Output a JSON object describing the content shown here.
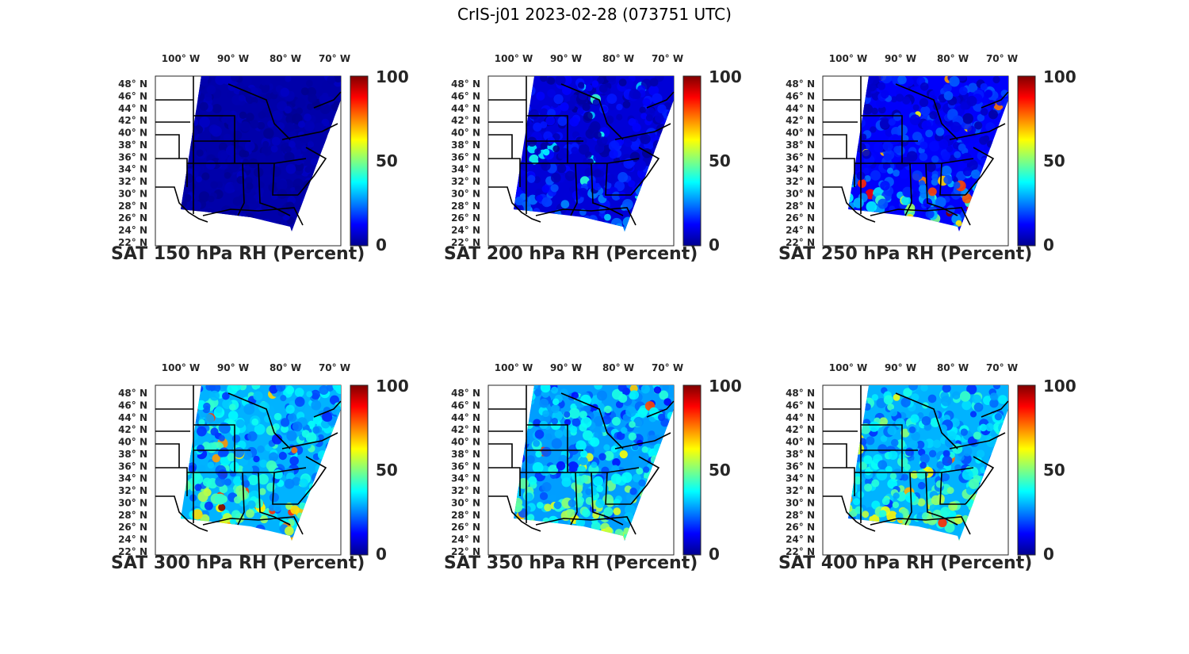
{
  "title": "CrIS-j01 2023-02-28 (073751 UTC)",
  "colormap": [
    "#00008f",
    "#0000ff",
    "#0080ff",
    "#00ffff",
    "#80ff80",
    "#ffff00",
    "#ff8000",
    "#ff0000",
    "#800000"
  ],
  "panels": [
    {
      "title": "SAT 150 hPa RH (Percent)",
      "mean": 3,
      "spread": 3,
      "south_boost": 0
    },
    {
      "title": "SAT 200 hPa RH (Percent)",
      "mean": 8,
      "spread": 8,
      "south_boost": 18
    },
    {
      "title": "SAT 250 hPa RH (Percent)",
      "mean": 12,
      "spread": 10,
      "south_boost": 38
    },
    {
      "title": "SAT 300 hPa RH (Percent)",
      "mean": 30,
      "spread": 15,
      "south_boost": 30
    },
    {
      "title": "SAT 350 hPa RH (Percent)",
      "mean": 28,
      "spread": 15,
      "south_boost": 28
    },
    {
      "title": "SAT 400 hPa RH (Percent)",
      "mean": 30,
      "spread": 14,
      "south_boost": 22
    }
  ],
  "lon_ticks": [
    "100° W",
    "90° W",
    "80° W",
    "70° W"
  ],
  "lat_ticks": [
    "48° N",
    "46° N",
    "44° N",
    "42° N",
    "40° N",
    "38° N",
    "36° N",
    "34° N",
    "32° N",
    "30° N",
    "28° N",
    "26° N",
    "24° N",
    "22° N"
  ],
  "colorbar_ticks": [
    "100",
    "50",
    "0"
  ]
}
